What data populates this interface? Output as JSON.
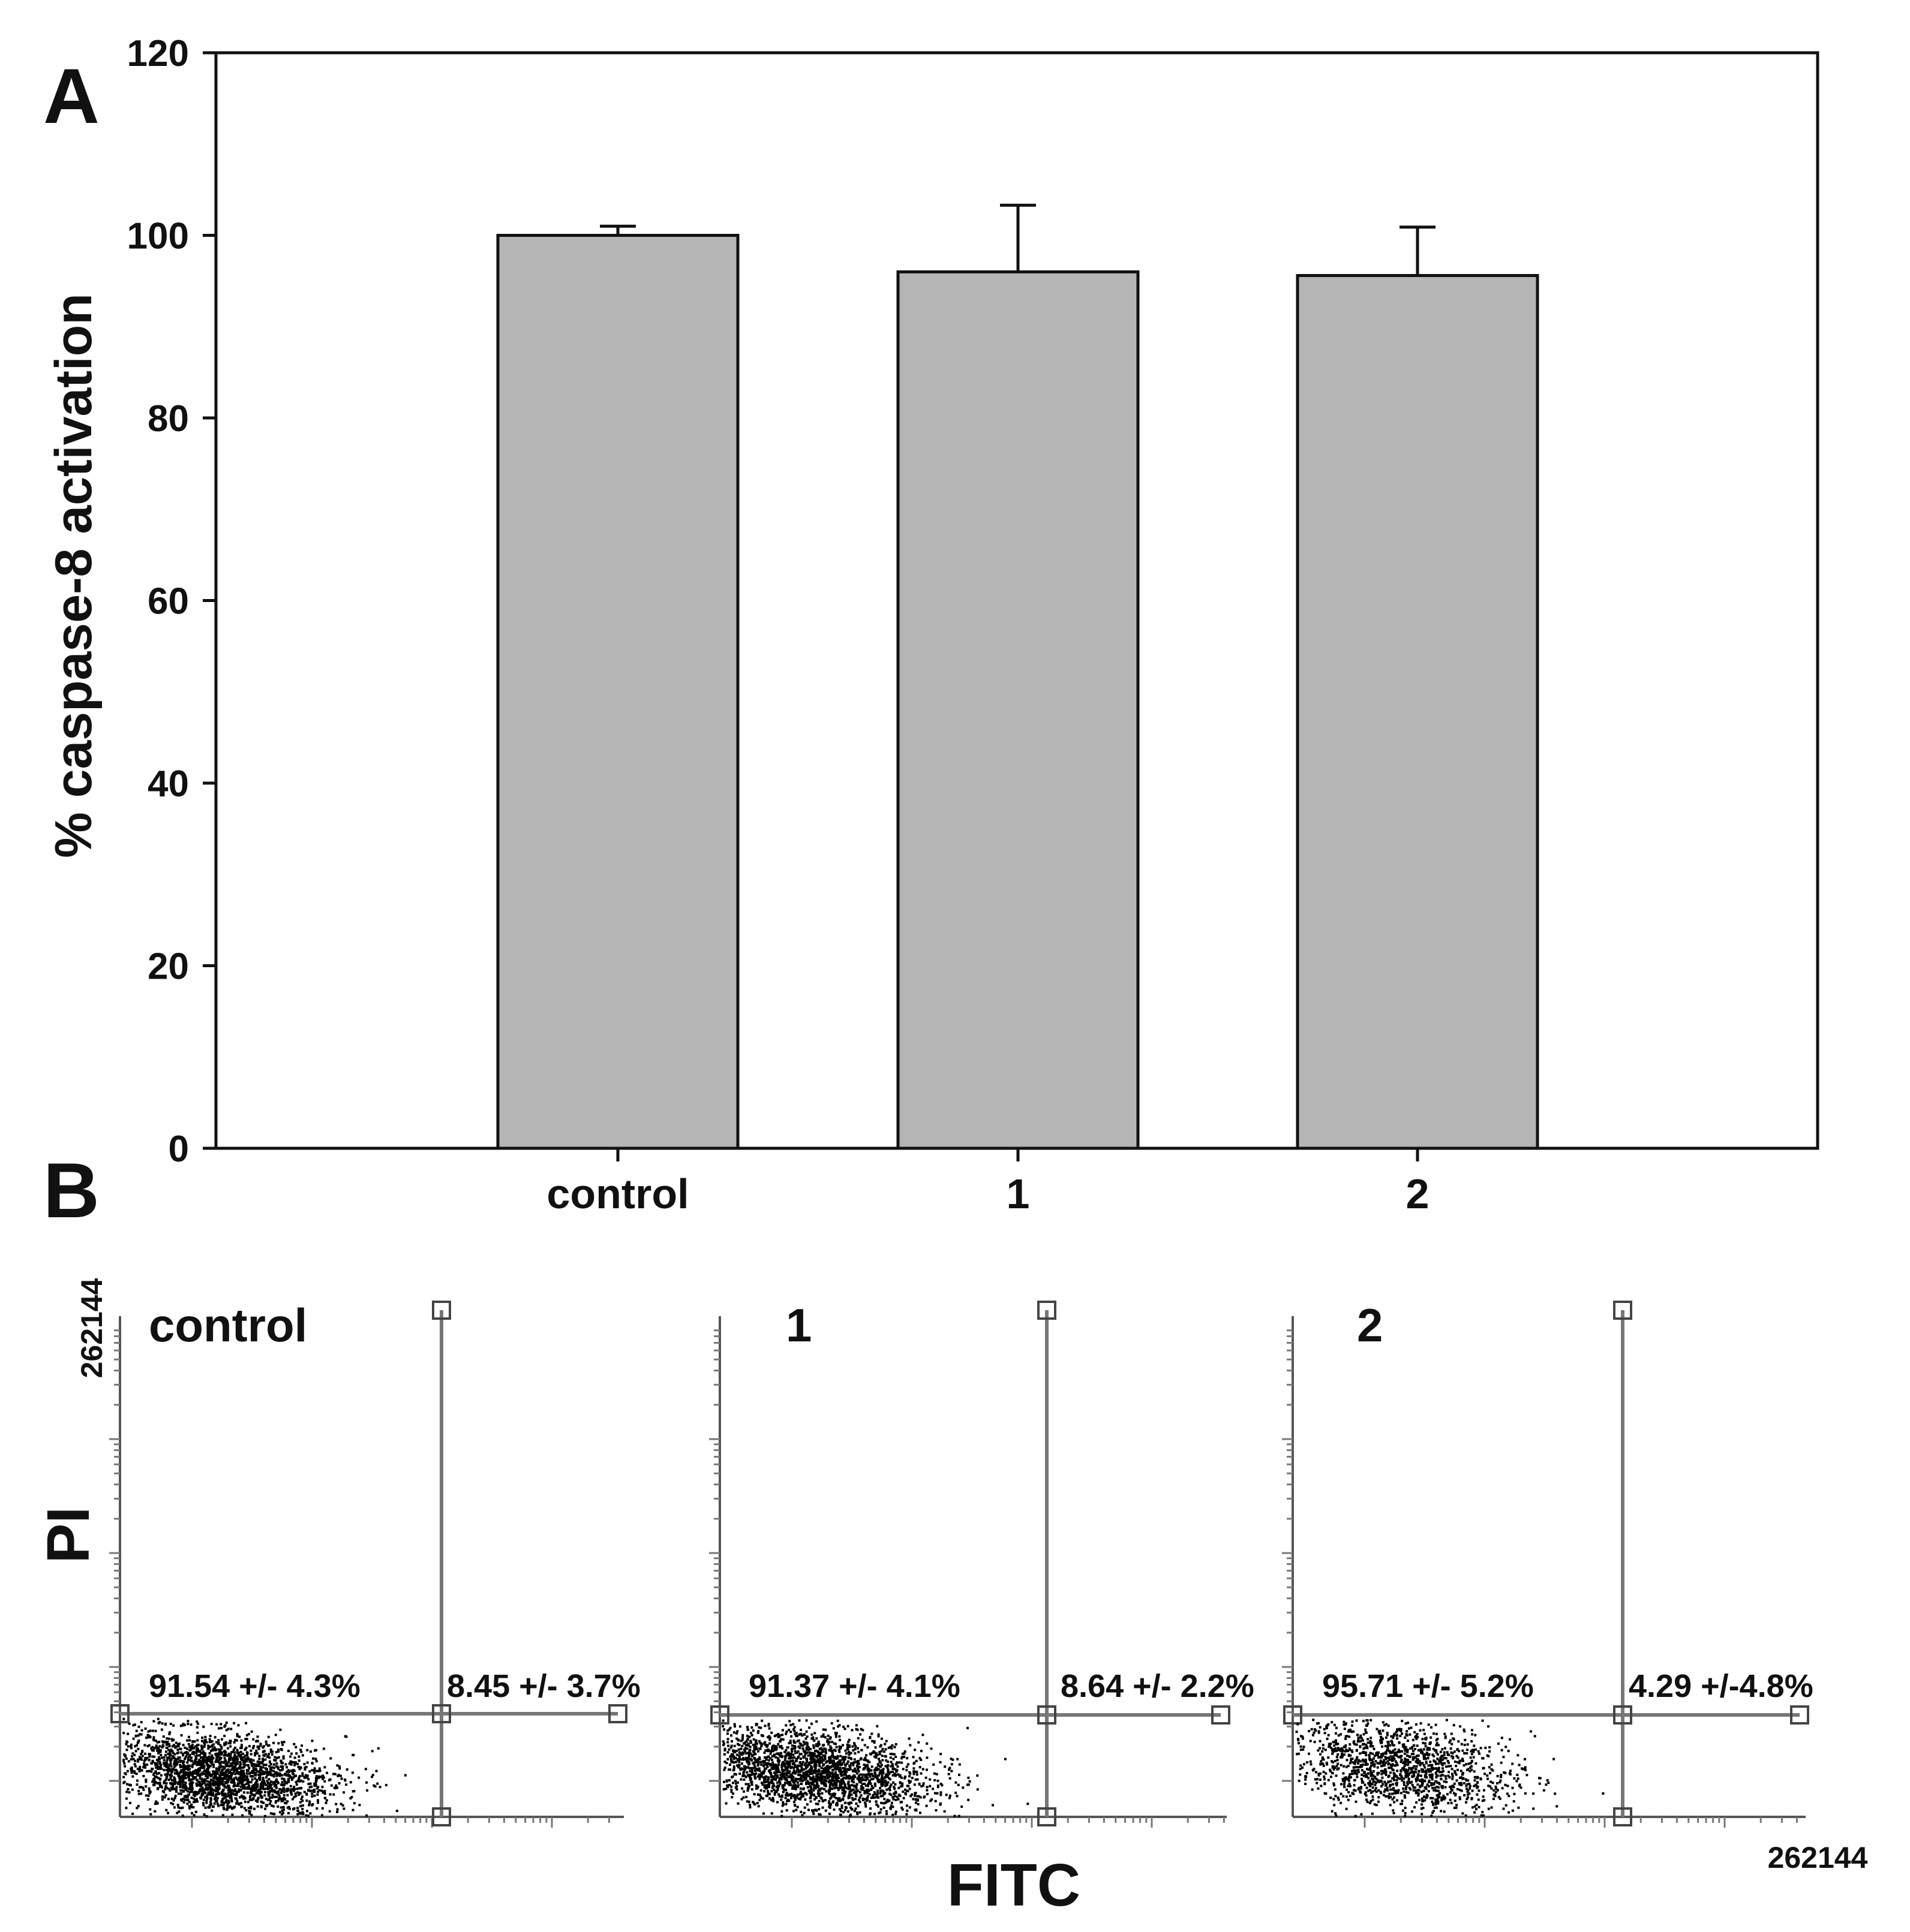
{
  "panel_a": {
    "letter": "A",
    "chart_data": {
      "type": "bar",
      "categories": [
        "control",
        "1",
        "2"
      ],
      "values": [
        100,
        96,
        95.6
      ],
      "errors": [
        1,
        7.3,
        5.3
      ],
      "title": "",
      "xlabel": "",
      "ylabel": "% caspase-8 activation",
      "ylim": [
        0,
        120
      ],
      "yticks": [
        0,
        20,
        40,
        60,
        80,
        100,
        120
      ],
      "bar_color": "#b5b5b5",
      "grid": false
    }
  },
  "panel_b": {
    "letter": "B",
    "y_axis_label": "PI",
    "x_axis_label": "FITC",
    "y_max_label": "262144",
    "x_max_label": "262144",
    "plots": [
      {
        "title": "control",
        "left_stat": "91.54 +/- 4.3%",
        "right_stat": "8.45 +/- 3.7%"
      },
      {
        "title": "1",
        "left_stat": "91.37 +/- 4.1%",
        "right_stat": "8.64 +/- 2.2%"
      },
      {
        "title": "2",
        "left_stat": "95.71 +/- 5.2%",
        "right_stat": "4.29 +/-4.8%"
      }
    ]
  }
}
